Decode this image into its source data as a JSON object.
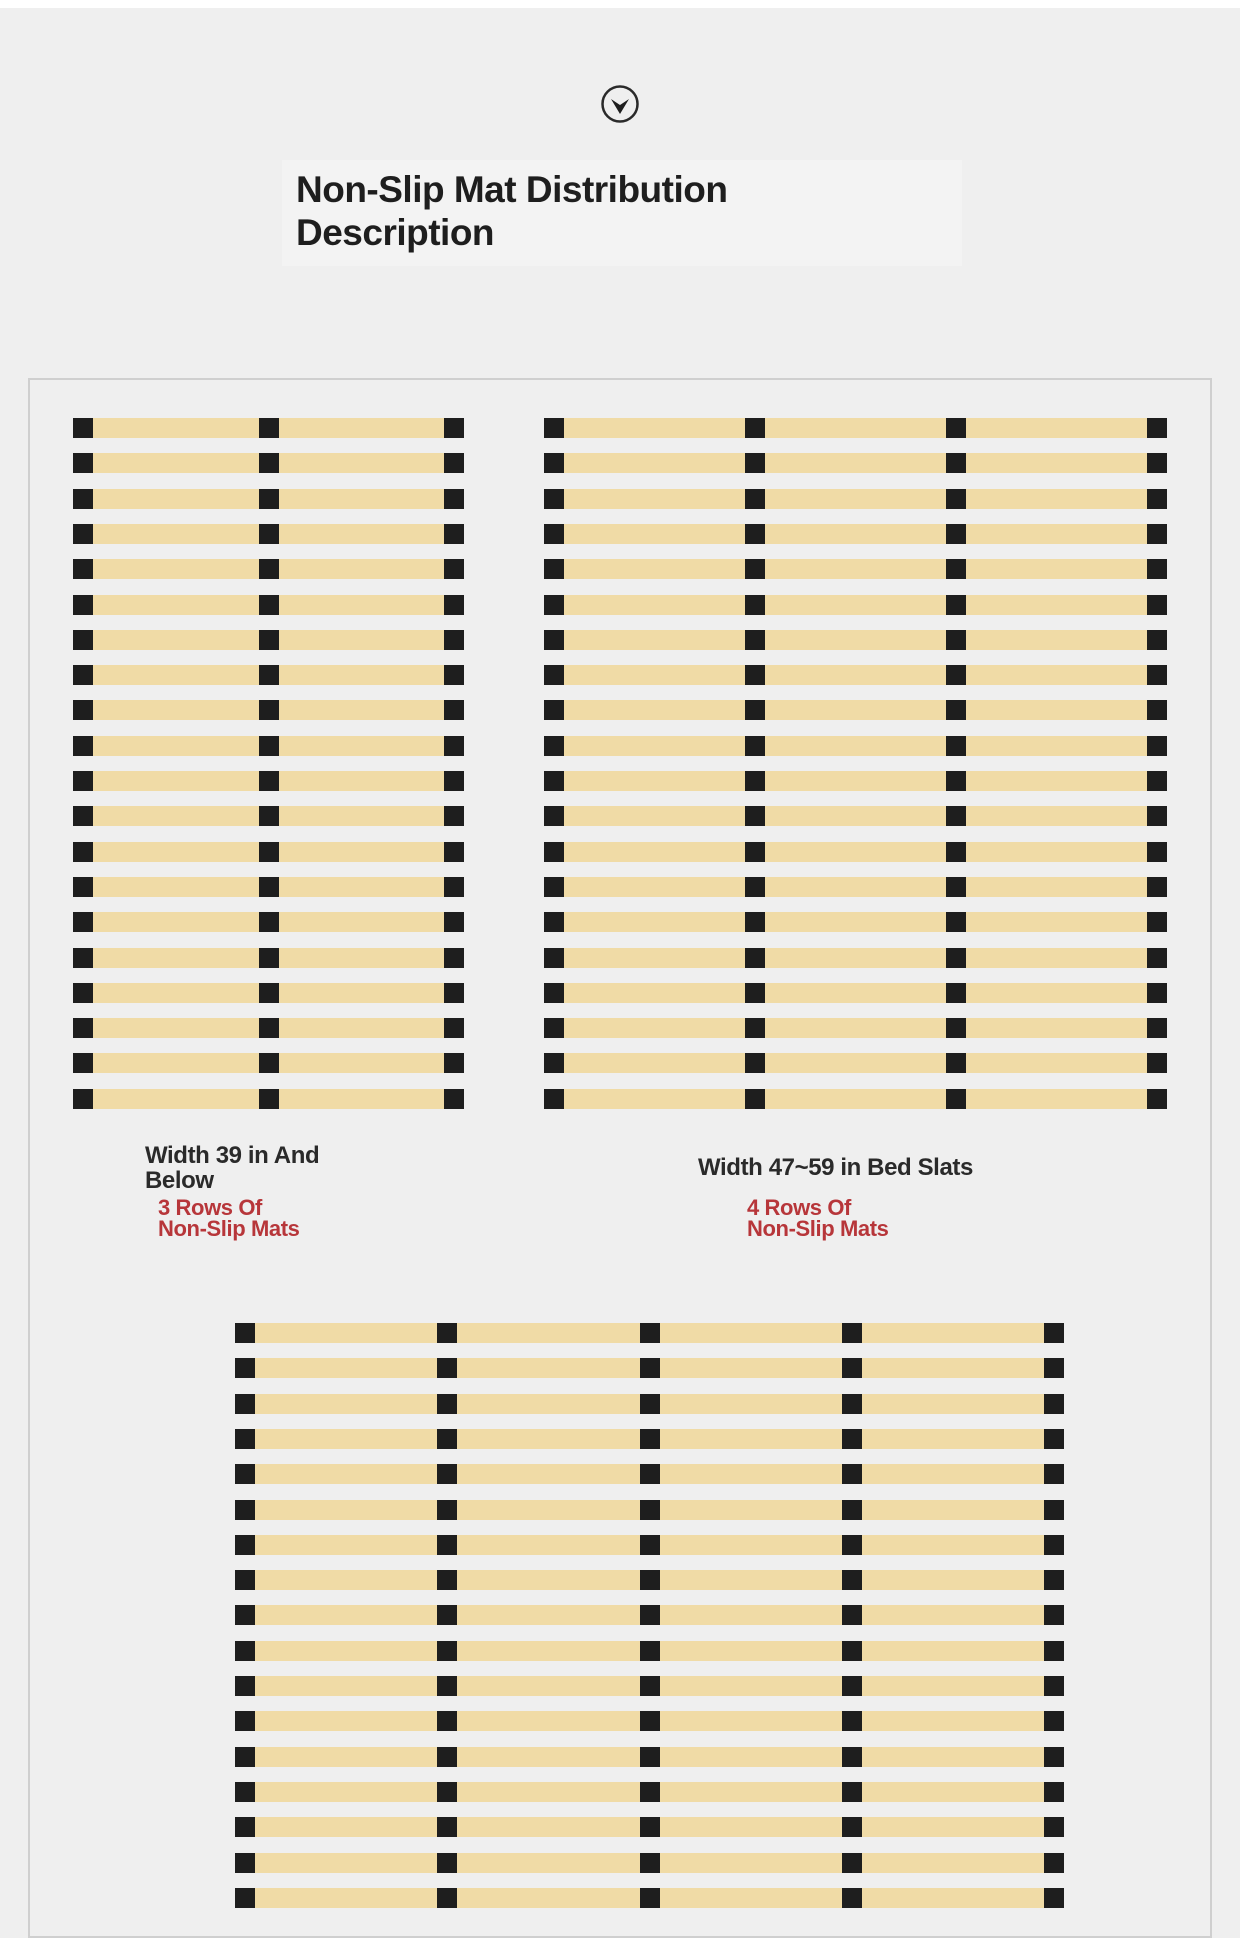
{
  "title": {
    "line1": "Non-Slip Mat Distribution",
    "line2": "Description"
  },
  "icons": {
    "scroll": "chevron-down-circle-icon"
  },
  "colors": {
    "background": "#efefef",
    "slat": "#f0dba6",
    "mat": "#1e1e1e",
    "accent": "#b7363a"
  },
  "layouts": [
    {
      "id": "narrow",
      "caption_line1": "Width 39 in And",
      "caption_line2": "Below",
      "rows_line1": "3 Rows Of",
      "rows_line2": "Non-Slip Mats",
      "mat_rows": 3,
      "slat_count": 20
    },
    {
      "id": "medium",
      "caption_line1": "Width 47~59 in Bed Slats",
      "rows_line1": "4 Rows Of",
      "rows_line2": "Non-Slip Mats",
      "mat_rows": 4,
      "slat_count": 20
    },
    {
      "id": "wide",
      "mat_rows": 5,
      "slat_count": 17
    }
  ]
}
